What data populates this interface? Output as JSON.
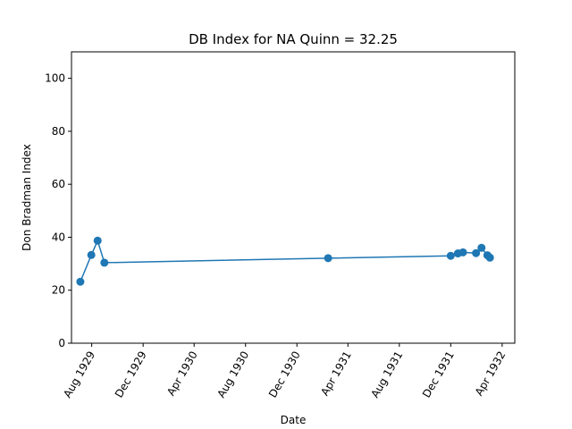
{
  "chart_data": {
    "type": "line",
    "title": "DB Index for NA Quinn = 32.25",
    "xlabel": "Date",
    "ylabel": "Don Bradman Index",
    "xlim": [
      "1929-06-14",
      "1932-05-01"
    ],
    "ylim": [
      0,
      110
    ],
    "x_ticks": [
      {
        "date": "1929-08-01",
        "label": "Aug 1929"
      },
      {
        "date": "1929-12-01",
        "label": "Dec 1929"
      },
      {
        "date": "1930-04-01",
        "label": "Apr 1930"
      },
      {
        "date": "1930-08-01",
        "label": "Aug 1930"
      },
      {
        "date": "1930-12-01",
        "label": "Dec 1930"
      },
      {
        "date": "1931-04-01",
        "label": "Apr 1931"
      },
      {
        "date": "1931-08-01",
        "label": "Aug 1931"
      },
      {
        "date": "1931-12-01",
        "label": "Dec 1931"
      },
      {
        "date": "1932-04-01",
        "label": "Apr 1932"
      }
    ],
    "y_ticks": [
      0,
      20,
      40,
      60,
      80,
      100
    ],
    "grid": false,
    "legend": "none",
    "color": "#1f77b4",
    "series": [
      {
        "points": [
          {
            "x": "1929-07-05",
            "y": 23.2
          },
          {
            "x": "1929-07-31",
            "y": 33.3
          },
          {
            "x": "1929-08-15",
            "y": 38.7
          },
          {
            "x": "1929-08-31",
            "y": 30.4
          },
          {
            "x": "1931-02-13",
            "y": 32.1
          },
          {
            "x": "1931-12-01",
            "y": 33.0
          },
          {
            "x": "1931-12-18",
            "y": 33.9
          },
          {
            "x": "1931-12-30",
            "y": 34.3
          },
          {
            "x": "1932-01-30",
            "y": 34.0
          },
          {
            "x": "1932-02-12",
            "y": 36.0
          },
          {
            "x": "1932-02-26",
            "y": 33.2
          },
          {
            "x": "1932-03-03",
            "y": 32.3
          }
        ]
      }
    ]
  }
}
